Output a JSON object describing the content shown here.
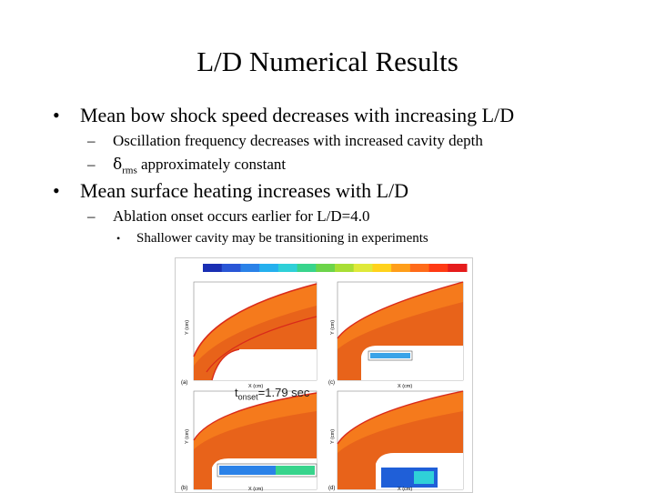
{
  "slide": {
    "title": "L/D Numerical Results",
    "bullets": [
      {
        "marker": "•",
        "text": "Mean bow shock speed decreases with increasing L/D",
        "subitems": [
          {
            "marker": "–",
            "text": "Oscillation frequency decreases with increased cavity depth"
          },
          {
            "marker": "–",
            "symbol": "δ",
            "subscript": "rms",
            "text": " approximately constant"
          }
        ]
      },
      {
        "marker": "•",
        "text": "Mean surface heating increases with L/D",
        "subitems": [
          {
            "marker": "–",
            "text": "Ablation onset occurs earlier for L/D=4.0",
            "subitems": [
              {
                "marker": "•",
                "text": "Shallower cavity may be transitioning in experiments"
              }
            ]
          }
        ]
      }
    ]
  },
  "figure": {
    "panel_labels": [
      "(a)",
      "(b)",
      "(c)",
      "(d)"
    ],
    "axis_x_label": "X (cm)",
    "axis_y_label": "Y (cm)",
    "onset_annotation": {
      "prefix": "t",
      "subscript": "onset",
      "value": "=1.79 sec"
    },
    "colorbar_colors": [
      "#1a2fb3",
      "#2a56d6",
      "#2b82e8",
      "#25b0ee",
      "#2fd0d8",
      "#38d48c",
      "#6cd44a",
      "#a8de35",
      "#dfe93a",
      "#ffd21c",
      "#ff9e1a",
      "#ff6b1a",
      "#ff3a14",
      "#e51c1c"
    ],
    "colors": {
      "flow": "#f57a1c",
      "flow_dark": "#e8631a",
      "shock": "#d92a1a",
      "body": "#ffffff",
      "cavity": "#1f5fd8"
    }
  }
}
